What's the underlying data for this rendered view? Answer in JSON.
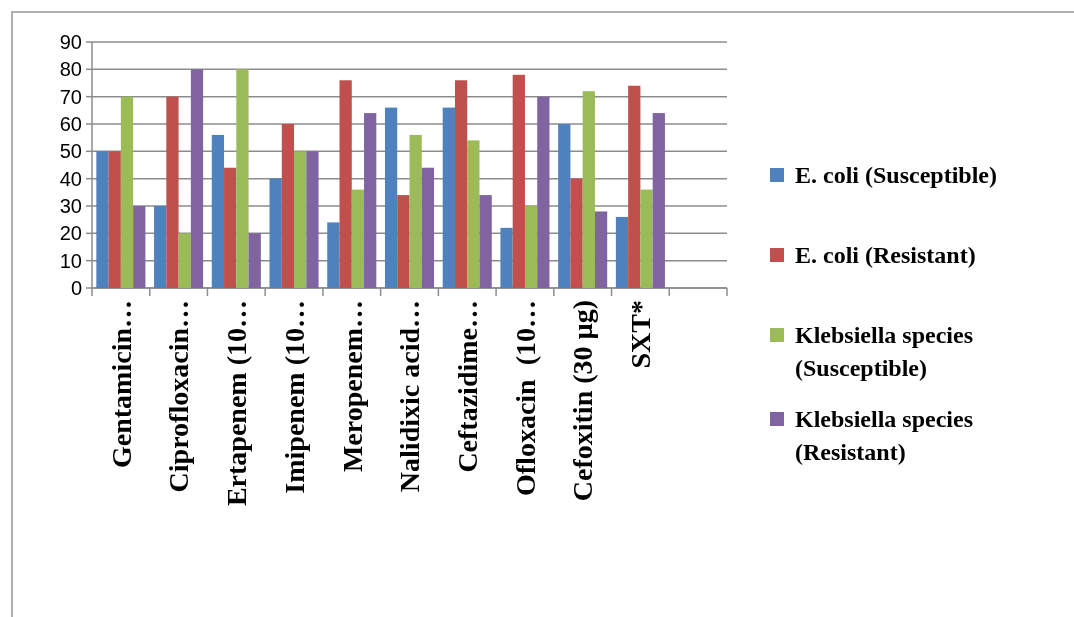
{
  "chart_data": {
    "type": "bar",
    "categories": [
      "Gentamicin…",
      "Ciprofloxacin…",
      "Ertapenem (10…",
      "Imipenem (10…",
      "Meropenem…",
      "Nalidixic acid…",
      "Ceftazidime…",
      "Ofloxacin  (10…",
      "Cefoxitin (30 µg)",
      "SXT*",
      null
    ],
    "series": [
      {
        "name": "E. coli (Susceptible)",
        "color": "#4f81bd",
        "values": [
          50,
          30,
          56,
          40,
          24,
          66,
          66,
          22,
          60,
          26,
          null
        ]
      },
      {
        "name": "E. coli (Resistant)",
        "color": "#c0504d",
        "values": [
          50,
          70,
          44,
          60,
          76,
          34,
          76,
          78,
          40,
          74,
          null
        ]
      },
      {
        "name": "Klebsiella species (Susceptible)",
        "color": "#9bbb59",
        "values": [
          70,
          20,
          80,
          50,
          36,
          56,
          54,
          30,
          72,
          36,
          null
        ]
      },
      {
        "name": "Klebsiella species (Resistant)",
        "color": "#8064a2",
        "values": [
          30,
          80,
          20,
          50,
          64,
          44,
          34,
          70,
          28,
          64,
          null
        ]
      }
    ],
    "ylim": [
      0,
      90
    ],
    "yticks": [
      0,
      10,
      20,
      30,
      40,
      50,
      60,
      70,
      80,
      90
    ],
    "grid": "y",
    "legend": "right"
  }
}
